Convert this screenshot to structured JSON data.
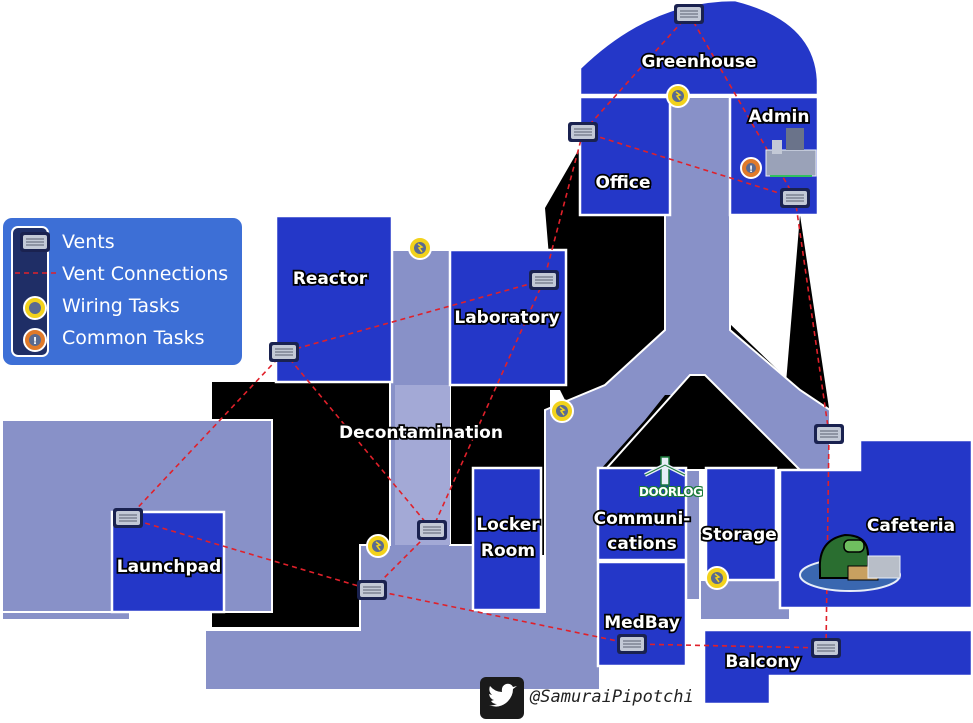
{
  "colors": {
    "room": "#2437c8",
    "hallway": "#8891c8",
    "background": "#000000",
    "vent_connection": "#e0202a",
    "wiring_task": "#f2d21c",
    "common_task": "#e07a2a",
    "legend_panel": "#3d6fd6"
  },
  "rooms": {
    "greenhouse": "Greenhouse",
    "admin": "Admin",
    "office": "Office",
    "reactor": "Reactor",
    "laboratory": "Laboratory",
    "decontamination": "Decontamination",
    "launchpad": "Launchpad",
    "locker_room_line1": "Locker",
    "locker_room_line2": "Room",
    "communications_line1": "Communi-",
    "communications_line2": "cations",
    "storage": "Storage",
    "cafeteria": "Cafeteria",
    "medbay": "MedBay",
    "balcony": "Balcony"
  },
  "legend": {
    "vents": "Vents",
    "vent_connections": "Vent Connections",
    "wiring_tasks": "Wiring Tasks",
    "common_tasks": "Common Tasks"
  },
  "map_icons": {
    "doorlog": "DOORLOG"
  },
  "credit": {
    "handle": "@SamuraiPipotchi",
    "icon": "twitter-bird-icon"
  }
}
